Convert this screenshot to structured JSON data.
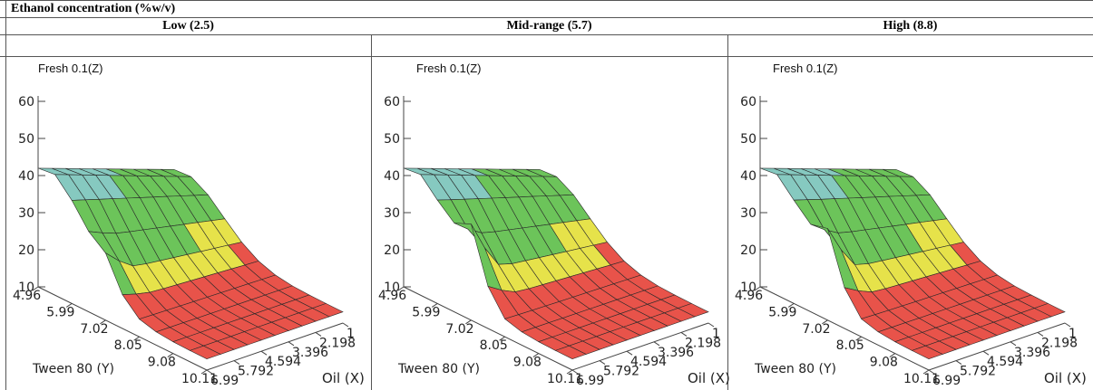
{
  "table": {
    "title": "Ethanol concentration (%w/v)",
    "columns": [
      "Low (2.5)",
      "Mid-range (5.7)",
      "High (8.8)"
    ]
  },
  "colors": {
    "low": "#e8534a",
    "mid": "#e6e24a",
    "green": "#6cc45a",
    "teal": "#86c9c0",
    "edge": "#2a2a2a"
  },
  "chart_data": [
    {
      "type": "surface3d",
      "title": "Fresh 0.1(Z)",
      "xlabel": "Oil (X)",
      "ylabel": "Tween 80 (Y)",
      "zlim": [
        10,
        60
      ],
      "z_ticks": [
        "60",
        "50",
        "40",
        "30",
        "20",
        "10"
      ],
      "x_ticks": [
        "1",
        "2.198",
        "3.396",
        "4.594",
        "5.792",
        "6.99"
      ],
      "y_ticks": [
        "4.96",
        "5.99",
        "7.02",
        "8.05",
        "9.08",
        "10.11"
      ],
      "x_range": [
        1,
        6.99
      ],
      "y_range": [
        4.96,
        10.11
      ],
      "peak": 43,
      "ridge": 9,
      "floor": 13
    },
    {
      "type": "surface3d",
      "title": "Fresh 0.1(Z)",
      "xlabel": "Oil (X)",
      "ylabel": "Tween 80 (Y)",
      "zlim": [
        10,
        60
      ],
      "z_ticks": [
        "60",
        "50",
        "40",
        "30",
        "20",
        "10"
      ],
      "x_ticks": [
        "1",
        "2.198",
        "3.396",
        "4.594",
        "5.792",
        "6.99"
      ],
      "y_ticks": [
        "4.96",
        "5.99",
        "7.02",
        "8.05",
        "9.08",
        "10.11"
      ],
      "x_range": [
        1,
        6.99
      ],
      "y_range": [
        4.96,
        10.11
      ],
      "peak": 43,
      "ridge": 22,
      "floor": 13
    },
    {
      "type": "surface3d",
      "title": "Fresh 0.1(Z)",
      "xlabel": "Oil (X)",
      "ylabel": "Tween 80 (Y)",
      "zlim": [
        10,
        60
      ],
      "z_ticks": [
        "60",
        "50",
        "40",
        "30",
        "20",
        "10"
      ],
      "x_ticks": [
        "1",
        "2.198",
        "3.396",
        "4.594",
        "5.792",
        "6.99"
      ],
      "y_ticks": [
        "4.96",
        "5.99",
        "7.02",
        "8.05",
        "9.08",
        "10.11"
      ],
      "x_range": [
        1,
        6.99
      ],
      "y_range": [
        4.96,
        10.11
      ],
      "peak": 43,
      "ridge": 20,
      "floor": 13
    }
  ]
}
